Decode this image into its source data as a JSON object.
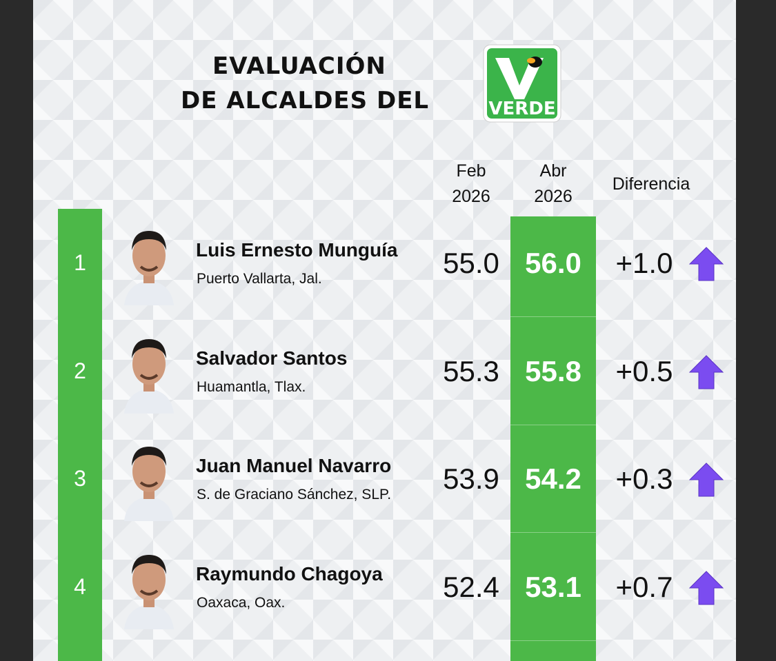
{
  "header": {
    "title_lines": [
      "EVALUACIÓN",
      "DE ALCALDES DEL"
    ],
    "logo_text": "VERDE"
  },
  "table": {
    "columns": [
      {
        "month": "Feb",
        "year": "2026"
      },
      {
        "month": "Abr",
        "year": "2026"
      },
      {
        "label": "Diferencia"
      }
    ],
    "rows": [
      {
        "rank": "1",
        "name": "Luis Ernesto Munguía",
        "place": "Puerto Vallarta, Jal.",
        "feb": "55.0",
        "abr": "56.0",
        "diff": "+1.0"
      },
      {
        "rank": "2",
        "name": "Salvador Santos",
        "place": "Huamantla, Tlax.",
        "feb": "55.3",
        "abr": "55.8",
        "diff": "+0.5"
      },
      {
        "rank": "3",
        "name": "Juan Manuel Navarro",
        "place": "S. de Graciano Sánchez, SLP.",
        "feb": "53.9",
        "abr": "54.2",
        "diff": "+0.3"
      },
      {
        "rank": "4",
        "name": "Raymundo Chagoya",
        "place": "Oaxaca, Oax.",
        "feb": "52.4",
        "abr": "53.1",
        "diff": "+0.7"
      }
    ]
  }
}
